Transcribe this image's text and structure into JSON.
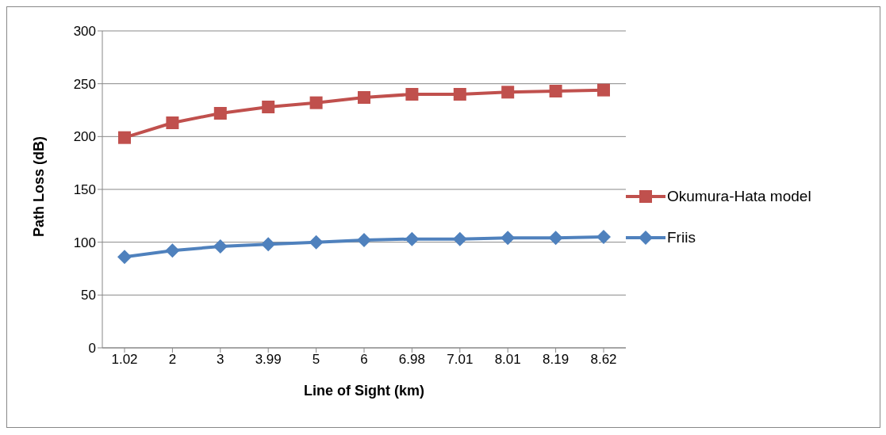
{
  "chart_data": {
    "type": "line",
    "xlabel": "Line of Sight (km)",
    "ylabel": "Path Loss (dB)",
    "categories": [
      "1.02",
      "2",
      "3",
      "3.99",
      "5",
      "6",
      "6.98",
      "7.01",
      "8.01",
      "8.19",
      "8.62"
    ],
    "series": [
      {
        "name": "Okumura-Hata model",
        "color": "#c0504d",
        "marker": "square",
        "values": [
          199,
          213,
          222,
          228,
          232,
          237,
          240,
          240,
          242,
          243,
          244
        ]
      },
      {
        "name": "Friis",
        "color": "#4f81bd",
        "marker": "diamond",
        "values": [
          86,
          92,
          96,
          98,
          100,
          102,
          103,
          103,
          104,
          104,
          105
        ]
      }
    ],
    "ylim": [
      0,
      300
    ],
    "yticks": [
      0,
      50,
      100,
      150,
      200,
      250,
      300
    ],
    "grid": "y",
    "legend": "right",
    "line_style": "solid"
  }
}
